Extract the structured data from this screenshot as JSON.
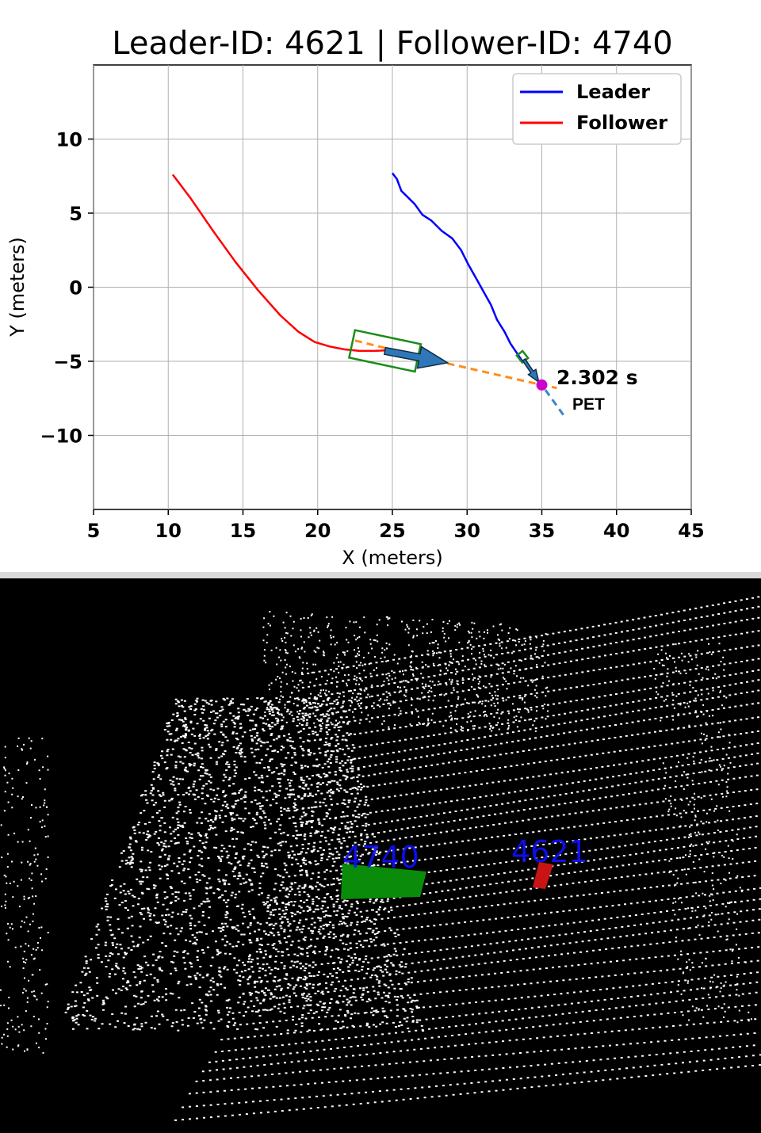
{
  "chart_data": {
    "type": "line",
    "title": "Leader-ID: 4621 | Follower-ID: 4740",
    "xlabel": "X (meters)",
    "ylabel": "Y (meters)",
    "xlim": [
      5,
      45
    ],
    "ylim": [
      -15,
      15
    ],
    "xticks": [
      5,
      10,
      15,
      20,
      25,
      30,
      35,
      40,
      45
    ],
    "xtick_labels": [
      "5",
      "10",
      "15",
      "20",
      "25",
      "30",
      "35",
      "40",
      "45"
    ],
    "yticks": [
      10,
      5,
      0,
      -5,
      -10
    ],
    "ytick_labels": [
      "10",
      "5",
      "0",
      "−5",
      "−10"
    ],
    "grid": true,
    "legend": "top-right",
    "series": [
      {
        "name": "Leader",
        "color": "#0000ff",
        "x": [
          25.0,
          25.3,
          25.6,
          26.0,
          26.5,
          27.0,
          27.6,
          28.3,
          29.0,
          29.6,
          30.1,
          30.6,
          31.1,
          31.6,
          32.0,
          32.5,
          32.9,
          33.3,
          33.7
        ],
        "y": [
          7.7,
          7.3,
          6.5,
          6.1,
          5.6,
          4.9,
          4.5,
          3.8,
          3.3,
          2.5,
          1.5,
          0.6,
          -0.3,
          -1.2,
          -2.2,
          -3.0,
          -3.8,
          -4.4,
          -5.0
        ]
      },
      {
        "name": "Follower",
        "color": "#ff0000",
        "x": [
          10.3,
          11.5,
          13.0,
          14.5,
          16.0,
          17.5,
          18.7,
          19.8,
          20.8,
          21.8,
          22.8,
          23.8,
          24.8
        ],
        "y": [
          7.6,
          6.0,
          3.8,
          1.7,
          -0.2,
          -1.9,
          -3.0,
          -3.7,
          -4.0,
          -4.2,
          -4.3,
          -4.3,
          -4.25
        ]
      }
    ],
    "projections": [
      {
        "name": "follower-projection",
        "color": "#ff8c1a",
        "x": [
          22.5,
          28.5,
          35.0,
          36.0
        ],
        "y": [
          -3.6,
          -5.1,
          -6.6,
          -6.8
        ]
      },
      {
        "name": "leader-projection",
        "color": "#3a86c8",
        "x": [
          33.8,
          35.0,
          36.5
        ],
        "y": [
          -5.0,
          -6.6,
          -8.7
        ]
      }
    ],
    "vehicles": [
      {
        "name": "follower-box",
        "color": "#1a8c1a",
        "cx": 24.5,
        "cy": -4.3,
        "length": 4.5,
        "width": 1.9,
        "heading_deg": -12
      },
      {
        "name": "leader-box",
        "color": "#1a8c1a",
        "cx": 33.7,
        "cy": -4.7,
        "length": 0.6,
        "width": 0.5,
        "heading_deg": -52
      }
    ],
    "arrows": [
      {
        "name": "follower-arrow",
        "x0": 24.5,
        "y0": -4.3,
        "x1": 28.7,
        "y1": -5.1
      },
      {
        "name": "leader-arrow",
        "x0": 33.8,
        "y0": -4.9,
        "x1": 34.8,
        "y1": -6.4
      }
    ],
    "conflict_point": {
      "x": 35.0,
      "y": -6.6,
      "color": "#cc00cc"
    },
    "pet": {
      "value": "2.302 s",
      "label": "PET"
    }
  },
  "lidar": {
    "follower_label": "4740",
    "leader_label": "4621",
    "follower_color": "#0a8c0a",
    "leader_color": "#c81414"
  }
}
